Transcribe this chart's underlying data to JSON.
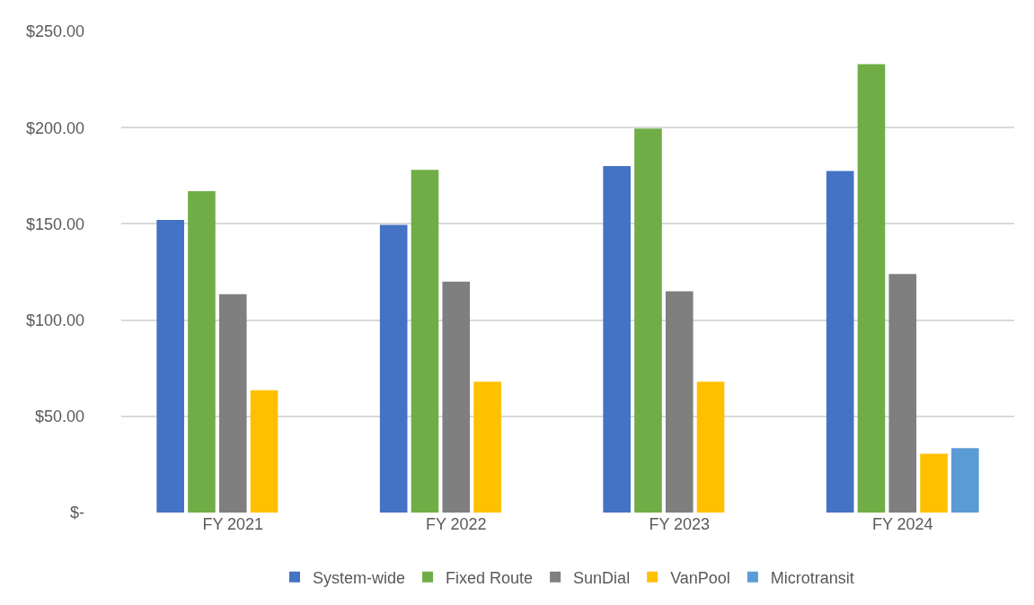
{
  "chart_data": {
    "type": "bar",
    "categories": [
      "FY 2021",
      "FY 2022",
      "FY 2023",
      "FY 2024"
    ],
    "series": [
      {
        "name": "System-wide",
        "color": "#4472c4",
        "values": [
          152,
          149.5,
          180,
          177.5
        ]
      },
      {
        "name": "Fixed Route",
        "color": "#70ad47",
        "values": [
          167,
          178,
          199.5,
          233
        ]
      },
      {
        "name": "SunDial",
        "color": "#7f7f7f",
        "values": [
          113.5,
          120,
          115,
          124
        ]
      },
      {
        "name": "VanPool",
        "color": "#ffc000",
        "values": [
          63.5,
          68,
          68,
          30.5
        ]
      },
      {
        "name": "Microtransit",
        "color": "#5b9bd5",
        "values": [
          null,
          null,
          null,
          33.5
        ]
      }
    ],
    "ylim": [
      0,
      250
    ],
    "yticks": [
      {
        "value": 0,
        "label": "$-"
      },
      {
        "value": 50,
        "label": "$50.00"
      },
      {
        "value": 100,
        "label": "$100.00"
      },
      {
        "value": 150,
        "label": "$150.00"
      },
      {
        "value": 200,
        "label": "$200.00"
      },
      {
        "value": 250,
        "label": "$250.00"
      }
    ],
    "grid": "y",
    "legend": "bottom"
  }
}
